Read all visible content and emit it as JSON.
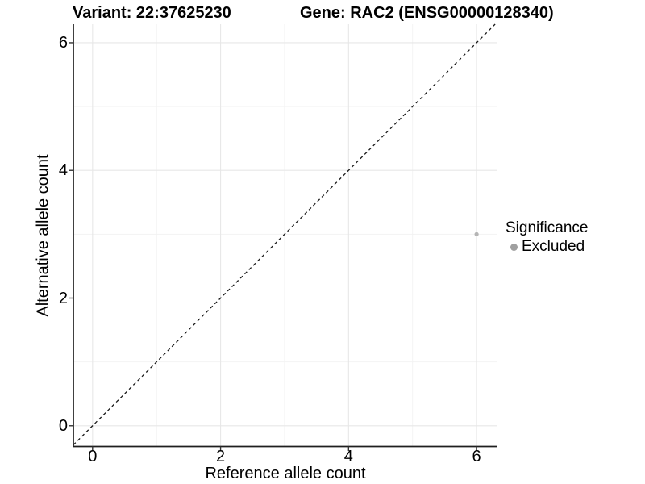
{
  "header": {
    "variant_title": "Variant: 22:37625230",
    "gene_title": "Gene: RAC2 (ENSG00000128340)"
  },
  "chart_data": {
    "type": "scatter",
    "title": "Variant: 22:37625230   Gene: RAC2 (ENSG00000128340)",
    "xlabel": "Reference allele count",
    "ylabel": "Alternative allele count",
    "xlim": [
      -0.3,
      6.32
    ],
    "ylim": [
      -0.325,
      6.29
    ],
    "x_ticks": [
      0,
      2,
      4,
      6
    ],
    "y_ticks": [
      0,
      2,
      4,
      6
    ],
    "x_minor_ticks": [
      1,
      3,
      5
    ],
    "y_minor_ticks": [
      1,
      3,
      5
    ],
    "grid": true,
    "identity_line": {
      "style": "dashed",
      "equation": "y = x",
      "color": "#1a1a1a"
    },
    "points": [
      {
        "x": 6,
        "y": 3,
        "series": "Excluded"
      }
    ],
    "legend": {
      "position": "right",
      "title": "Significance",
      "entries": [
        {
          "label": "Excluded",
          "color": "#a0a0a0"
        }
      ]
    },
    "colors": {
      "point": "#b5b5b5",
      "grid_major": "#e7e7e7",
      "grid_minor": "#f2f2f2",
      "axis_line": "#1f1f1f",
      "tick_mark": "#333333",
      "text": "#000000",
      "background": "#ffffff"
    }
  }
}
